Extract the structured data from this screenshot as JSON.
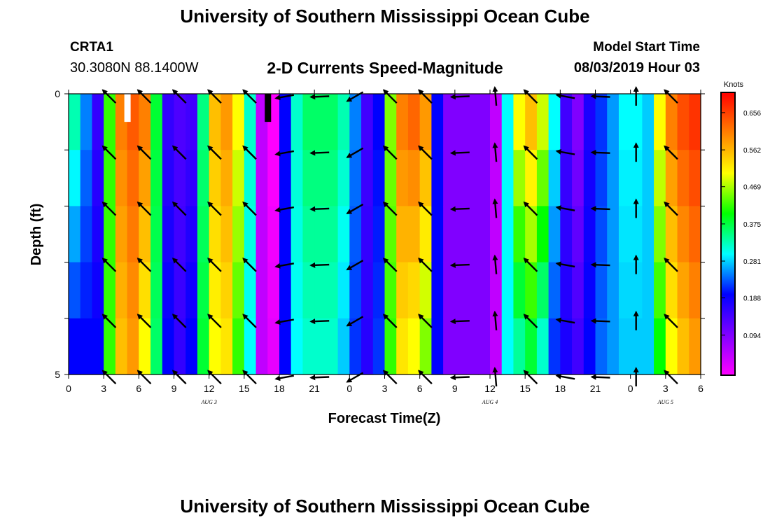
{
  "header": {
    "title_top": "University of Southern Mississippi Ocean Cube",
    "title_bottom": "University of Southern Mississippi Ocean Cube",
    "station_name": "CRTA1",
    "station_coords": "30.3080N 88.1400W",
    "model_start_label": "Model Start Time",
    "model_start_value": "08/03/2019 Hour 03"
  },
  "chart_data": {
    "type": "heatmap",
    "title": "2-D Currents Speed-Magnitude",
    "xlabel": "Forecast Time(Z)",
    "ylabel": "Depth (ft)",
    "x_ticks": [
      "0",
      "3",
      "6",
      "9",
      "12",
      "15",
      "18",
      "21",
      "0",
      "3",
      "6",
      "9",
      "12",
      "15",
      "18",
      "21",
      "0",
      "3",
      "6"
    ],
    "x_hours": [
      0,
      3,
      6,
      9,
      12,
      15,
      18,
      21,
      24,
      27,
      30,
      33,
      36,
      39,
      42,
      45,
      48,
      51,
      54
    ],
    "xlim": [
      0,
      54
    ],
    "date_labels": [
      {
        "label": "AUG 3",
        "hour": 12
      },
      {
        "label": "AUG 4",
        "hour": 36
      },
      {
        "label": "AUG 5",
        "hour": 51
      }
    ],
    "y_ticks": [
      "0",
      "5"
    ],
    "ylim": [
      0,
      5
    ],
    "colorbar": {
      "title": "Knots",
      "ticks": [
        "0.656",
        "0.562",
        "0.469",
        "0.375",
        "0.281",
        "0.188",
        "0.094"
      ],
      "tick_values": [
        0.656,
        0.562,
        0.469,
        0.375,
        0.281,
        0.188,
        0.094
      ],
      "range": [
        0.0,
        0.7
      ],
      "colors": [
        "#ff00ff",
        "#8000ff",
        "#0000ff",
        "#00ffff",
        "#00ff00",
        "#ffff00",
        "#ff8000",
        "#ff0000"
      ]
    },
    "hours": [
      0,
      1,
      2,
      3,
      4,
      5,
      6,
      7,
      8,
      9,
      10,
      11,
      12,
      13,
      14,
      15,
      16,
      17,
      18,
      19,
      20,
      21,
      22,
      23,
      24,
      25,
      26,
      27,
      28,
      29,
      30,
      31,
      32,
      33,
      34,
      35,
      36,
      37,
      38,
      39,
      40,
      41,
      42,
      43,
      44,
      45,
      46,
      47,
      48,
      49,
      50,
      51,
      52,
      53,
      54
    ],
    "speed_surface": [
      0.33,
      0.25,
      0.16,
      0.42,
      0.6,
      0.63,
      0.6,
      0.38,
      0.16,
      0.14,
      0.15,
      0.35,
      0.55,
      0.58,
      0.5,
      0.32,
      0.05,
      0.0,
      0.2,
      0.32,
      0.36,
      0.36,
      0.36,
      0.33,
      0.25,
      0.15,
      0.2,
      0.45,
      0.6,
      0.62,
      0.58,
      0.2,
      0.1,
      0.1,
      0.1,
      0.1,
      0.05,
      0.3,
      0.5,
      0.55,
      0.48,
      0.3,
      0.15,
      0.1,
      0.18,
      0.22,
      0.26,
      0.3,
      0.3,
      0.28,
      0.5,
      0.6,
      0.64,
      0.66,
      0.66
    ],
    "speed_bottom": [
      0.2,
      0.2,
      0.2,
      0.42,
      0.55,
      0.58,
      0.5,
      0.36,
      0.2,
      0.16,
      0.2,
      0.38,
      0.5,
      0.52,
      0.42,
      0.3,
      0.05,
      0.02,
      0.2,
      0.3,
      0.32,
      0.32,
      0.32,
      0.28,
      0.22,
      0.17,
      0.22,
      0.42,
      0.52,
      0.5,
      0.45,
      0.2,
      0.1,
      0.1,
      0.1,
      0.1,
      0.05,
      0.3,
      0.34,
      0.38,
      0.32,
      0.22,
      0.18,
      0.15,
      0.2,
      0.24,
      0.26,
      0.28,
      0.28,
      0.28,
      0.4,
      0.5,
      0.55,
      0.58,
      0.6
    ],
    "missing_cells": [
      {
        "hour": 5,
        "depth_from": 0,
        "depth_to": 0.5,
        "fill": "white"
      },
      {
        "hour": 17,
        "depth_from": 0,
        "depth_to": 0.5,
        "fill": "black"
      }
    ],
    "vector_depths": [
      0,
      1,
      2,
      3,
      4,
      5
    ],
    "vector_hours": [
      3,
      6,
      9,
      12,
      15,
      18,
      21,
      24,
      27,
      30,
      33,
      36,
      39,
      42,
      45,
      48,
      51
    ],
    "vector_directions_deg": [
      135,
      135,
      135,
      135,
      135,
      190,
      182,
      210,
      135,
      135,
      182,
      95,
      135,
      170,
      178,
      90,
      135
    ],
    "direction_convention": "degrees counterclockwise from +x (east on page), y up"
  }
}
